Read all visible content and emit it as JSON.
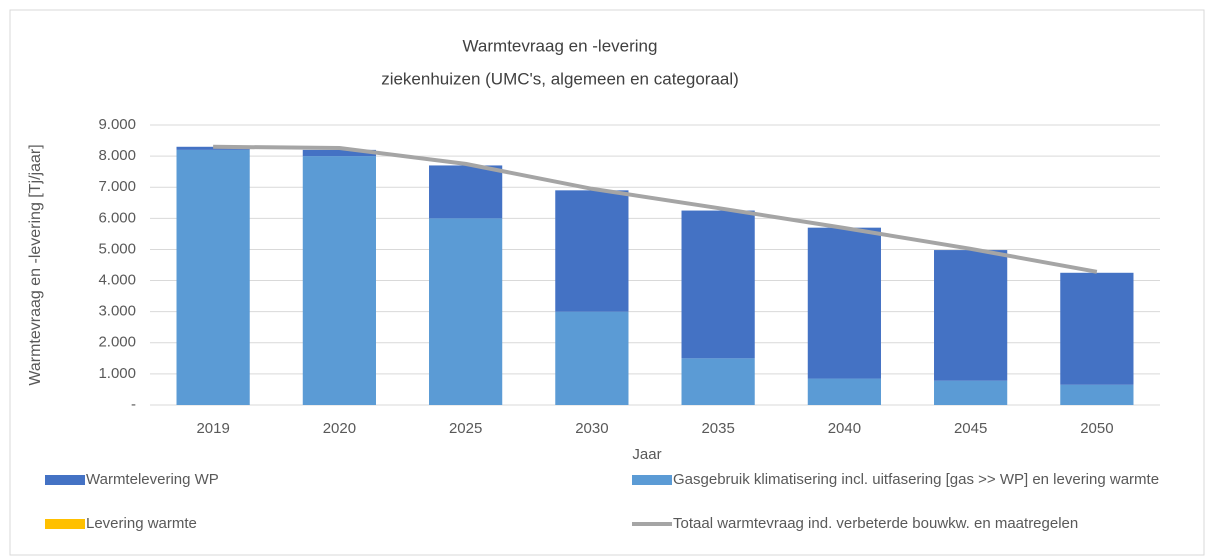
{
  "chart_data": {
    "type": "bar",
    "stacked": true,
    "title": "Warmtevraag en -levering",
    "subtitle": "ziekenhuizen (UMC's, algemeen en categoraal)",
    "x_label": "Jaar",
    "y_label": "Warmtevraag en -levering [Tj/jaar]",
    "categories": [
      "2019",
      "2020",
      "2025",
      "2030",
      "2035",
      "2040",
      "2045",
      "2050"
    ],
    "series": [
      {
        "name": "Warmtelevering WP",
        "color": "#4472c4",
        "type": "bar",
        "values": [
          100,
          200,
          1700,
          3900,
          4750,
          4850,
          4200,
          3600
        ]
      },
      {
        "name": "Gasgebruik klimatisering incl. uitfasering [gas >> WP] en levering warmte",
        "color": "#5b9bd5",
        "type": "bar",
        "values": [
          8200,
          8000,
          6000,
          3000,
          1500,
          850,
          780,
          650
        ]
      },
      {
        "name": "Levering warmte",
        "color": "#ffc000",
        "type": "bar",
        "values": [
          0,
          0,
          0,
          0,
          0,
          0,
          0,
          0
        ]
      },
      {
        "name": "Totaal warmtevraag ind. verbeterde bouwkw. en maatregelen",
        "color": "#a5a5a5",
        "type": "line",
        "values": [
          8300,
          8260,
          7750,
          6950,
          6330,
          5690,
          5020,
          4280
        ]
      }
    ],
    "ylim": [
      0,
      9000
    ],
    "yticks": [
      {
        "value": 0,
        "label": "-"
      },
      {
        "value": 1000,
        "label": "1.000"
      },
      {
        "value": 2000,
        "label": "2.000"
      },
      {
        "value": 3000,
        "label": "3.000"
      },
      {
        "value": 4000,
        "label": "4.000"
      },
      {
        "value": 5000,
        "label": "5.000"
      },
      {
        "value": 6000,
        "label": "6.000"
      },
      {
        "value": 7000,
        "label": "7.000"
      },
      {
        "value": 8000,
        "label": "8.000"
      },
      {
        "value": 9000,
        "label": "9.000"
      }
    ],
    "grid": true,
    "legend": "bottom"
  }
}
